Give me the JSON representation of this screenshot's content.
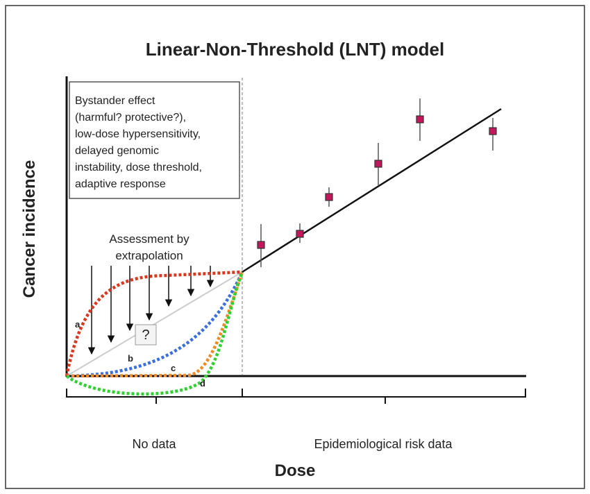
{
  "title": "Linear-Non-Threshold (LNT) model",
  "note_box": {
    "lines": [
      "Bystander effect",
      "(harmful? protective?),",
      "low-dose hypersensitivity,",
      "delayed genomic",
      "instability, dose threshold,",
      "adaptive response"
    ]
  },
  "assessment": {
    "lines": [
      "Assessment by",
      "extrapolation"
    ],
    "marker": "?"
  },
  "curve_labels": [
    "a",
    "b",
    "c",
    "d"
  ],
  "regions": [
    "No data",
    "Epidemiological risk  data"
  ],
  "x_axis_label": "Dose",
  "y_axis_label": "Cancer incidence"
}
